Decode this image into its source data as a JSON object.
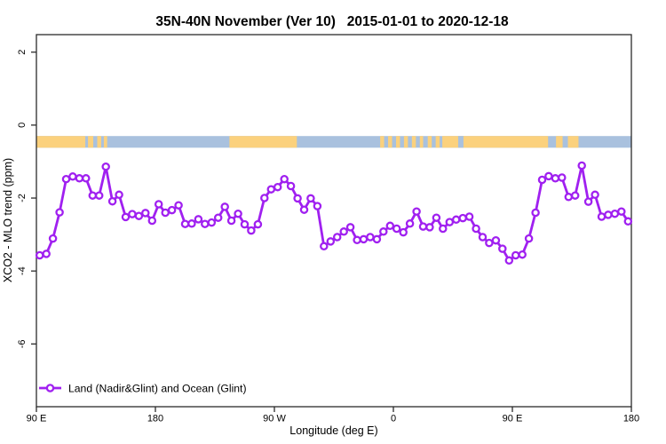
{
  "chart_data": {
    "type": "line",
    "title": "35N-40N November (Ver 10)   2015-01-01 to 2020-12-18",
    "xlabel": "Longitude (deg E)",
    "ylabel": "XCO2 - MLO trend (ppm)",
    "xlim": [
      90,
      540
    ],
    "ylim": [
      -7.72,
      2.48
    ],
    "grid": false,
    "legend_position": "bottom-left",
    "x_ticks": [
      {
        "value": 90,
        "label": "90 E"
      },
      {
        "value": 180,
        "label": "180"
      },
      {
        "value": 270,
        "label": "90 W"
      },
      {
        "value": 360,
        "label": "0"
      },
      {
        "value": 450,
        "label": "90 E"
      },
      {
        "value": 540,
        "label": "180"
      }
    ],
    "y_ticks": [
      {
        "value": 2,
        "label": "2"
      },
      {
        "value": 0,
        "label": "0"
      },
      {
        "value": -2,
        "label": "-2"
      },
      {
        "value": -4,
        "label": "-4"
      },
      {
        "value": -6,
        "label": "-6"
      }
    ],
    "series": [
      {
        "name": "Land (Nadir&Glint) and Ocean (Glint)",
        "color": "#A020F0",
        "marker": "open-circle",
        "x": [
          92.5,
          97.5,
          102.5,
          107.5,
          112.5,
          117.5,
          122.5,
          127.5,
          132.5,
          137.5,
          142.5,
          147.5,
          152.5,
          157.5,
          162.5,
          167.5,
          172.5,
          177.5,
          182.5,
          187.5,
          192.5,
          197.5,
          202.5,
          207.5,
          212.5,
          217.5,
          222.5,
          227.5,
          232.5,
          237.5,
          242.5,
          247.5,
          252.5,
          257.5,
          262.5,
          267.5,
          272.5,
          277.5,
          282.5,
          287.5,
          292.5,
          297.5,
          302.5,
          307.5,
          312.5,
          317.5,
          322.5,
          327.5,
          332.5,
          337.5,
          342.5,
          347.5,
          352.5,
          357.5,
          362.5,
          367.5,
          372.5,
          377.5,
          382.5,
          387.5,
          392.5,
          397.5,
          402.5,
          407.5,
          412.5,
          417.5,
          422.5,
          427.5,
          432.5,
          437.5,
          442.5,
          447.5,
          452.5,
          457.5,
          462.5,
          467.5,
          472.5,
          477.5,
          482.5,
          487.5,
          492.5,
          497.5,
          502.5,
          507.5,
          512.5,
          517.5,
          522.5,
          527.5,
          532.5,
          537.5
        ],
        "values": [
          -3.57,
          -3.53,
          -3.11,
          -2.39,
          -1.48,
          -1.41,
          -1.46,
          -1.46,
          -1.93,
          -1.93,
          -1.14,
          -2.09,
          -1.91,
          -2.52,
          -2.44,
          -2.49,
          -2.41,
          -2.62,
          -2.17,
          -2.4,
          -2.33,
          -2.2,
          -2.71,
          -2.7,
          -2.58,
          -2.71,
          -2.67,
          -2.54,
          -2.24,
          -2.62,
          -2.43,
          -2.72,
          -2.89,
          -2.72,
          -2.0,
          -1.76,
          -1.7,
          -1.48,
          -1.67,
          -2.01,
          -2.32,
          -2.01,
          -2.22,
          -3.32,
          -3.19,
          -3.07,
          -2.92,
          -2.8,
          -3.15,
          -3.13,
          -3.07,
          -3.13,
          -2.92,
          -2.76,
          -2.84,
          -2.94,
          -2.7,
          -2.37,
          -2.78,
          -2.8,
          -2.54,
          -2.84,
          -2.66,
          -2.59,
          -2.55,
          -2.51,
          -2.84,
          -3.07,
          -3.23,
          -3.16,
          -3.39,
          -3.71,
          -3.57,
          -3.55,
          -3.11,
          -2.4,
          -1.5,
          -1.4,
          -1.46,
          -1.44,
          -1.97,
          -1.93,
          -1.11,
          -2.1,
          -1.91,
          -2.51,
          -2.46,
          -2.43,
          -2.37,
          -2.64
        ]
      }
    ],
    "surface_band": {
      "meaning": "land (orange) vs ocean (blue) strip along longitude",
      "y_range": [
        -0.62,
        -0.3
      ],
      "ocean_color": "#A9C1DE",
      "land_color": "#FBD17D",
      "ocean_extent": [
        90,
        540
      ],
      "land_segments": [
        [
          90,
          127
        ],
        [
          129,
          133
        ],
        [
          136,
          139
        ],
        [
          141,
          143.5
        ],
        [
          236,
          287
        ],
        [
          350,
          353
        ],
        [
          356,
          359
        ],
        [
          362,
          365
        ],
        [
          368,
          371
        ],
        [
          374,
          377
        ],
        [
          380,
          382.5
        ],
        [
          386,
          389
        ],
        [
          392,
          395
        ],
        [
          397,
          477
        ],
        [
          483,
          488
        ],
        [
          492,
          500
        ]
      ],
      "ocean_patches": [
        [
          409,
          413
        ]
      ]
    }
  }
}
